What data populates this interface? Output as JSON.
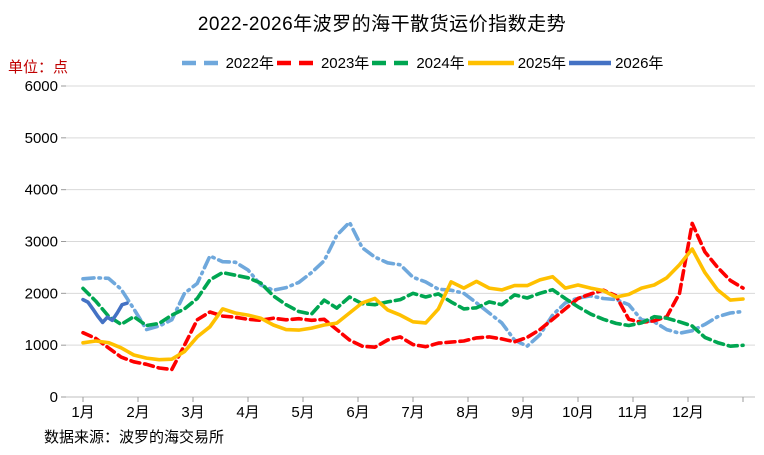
{
  "title": "2022-2026年波罗的海干散货运价指数走势",
  "unit_label": "单位：点",
  "source_note": "数据来源：波罗的海交易所",
  "chart_data": {
    "type": "line",
    "title": "2022-2026年波罗的海干散货运价指数走势",
    "ylabel": "单位：点",
    "ylim": [
      0,
      6000
    ],
    "yticks": [
      0,
      1000,
      2000,
      3000,
      4000,
      5000,
      6000
    ],
    "xticks": [
      "1月",
      "2月",
      "3月",
      "4月",
      "5月",
      "6月",
      "7月",
      "8月",
      "9月",
      "10月",
      "11月",
      "12月"
    ],
    "grid": "horizontal-light-gray",
    "legend_position": "top-center",
    "x_resolution": "weekly points spanning January to December",
    "series": [
      {
        "name": "2022年",
        "color": "#6FA8DC",
        "style": "dash-dot",
        "span_months": 12,
        "values": [
          2280,
          2300,
          2290,
          2080,
          1700,
          1300,
          1370,
          1490,
          2000,
          2190,
          2720,
          2610,
          2600,
          2450,
          2160,
          2060,
          2110,
          2210,
          2400,
          2630,
          3120,
          3370,
          2880,
          2700,
          2590,
          2550,
          2310,
          2220,
          2080,
          2060,
          2000,
          1815,
          1620,
          1430,
          1100,
          980,
          1200,
          1580,
          1815,
          1910,
          1950,
          1900,
          1880,
          1780,
          1490,
          1450,
          1300,
          1230,
          1280,
          1400,
          1550,
          1620,
          1650
        ]
      },
      {
        "name": "2023年",
        "color": "#FE0000",
        "style": "dash",
        "span_months": 12,
        "values": [
          1240,
          1130,
          950,
          770,
          680,
          630,
          560,
          530,
          1000,
          1490,
          1640,
          1560,
          1540,
          1500,
          1480,
          1520,
          1490,
          1510,
          1480,
          1500,
          1300,
          1100,
          980,
          960,
          1100,
          1160,
          1010,
          970,
          1040,
          1060,
          1080,
          1140,
          1160,
          1120,
          1065,
          1150,
          1300,
          1500,
          1700,
          1900,
          1990,
          2060,
          1950,
          1500,
          1440,
          1470,
          1550,
          2000,
          3350,
          2800,
          2500,
          2250,
          2100
        ]
      },
      {
        "name": "2024年",
        "color": "#00A651",
        "style": "dash",
        "span_months": 12,
        "values": [
          2095,
          1850,
          1560,
          1400,
          1550,
          1380,
          1420,
          1580,
          1700,
          1900,
          2260,
          2400,
          2350,
          2300,
          2200,
          1950,
          1780,
          1650,
          1600,
          1870,
          1715,
          1930,
          1800,
          1780,
          1835,
          1880,
          2000,
          1930,
          1990,
          1835,
          1700,
          1720,
          1835,
          1780,
          1970,
          1910,
          2000,
          2070,
          1900,
          1740,
          1600,
          1500,
          1420,
          1380,
          1430,
          1550,
          1520,
          1450,
          1370,
          1150,
          1050,
          980,
          997
        ]
      },
      {
        "name": "2025年",
        "color": "#FFC000",
        "style": "solid",
        "span_months": 12,
        "values": [
          1045,
          1080,
          1050,
          950,
          810,
          750,
          720,
          730,
          875,
          1160,
          1355,
          1700,
          1620,
          1580,
          1520,
          1390,
          1300,
          1290,
          1330,
          1390,
          1425,
          1620,
          1815,
          1900,
          1680,
          1580,
          1450,
          1430,
          1700,
          2220,
          2100,
          2230,
          2100,
          2066,
          2150,
          2150,
          2260,
          2320,
          2100,
          2160,
          2100,
          2050,
          1930,
          1980,
          2100,
          2160,
          2300,
          2550,
          2855,
          2400,
          2066,
          1870,
          1890
        ]
      },
      {
        "name": "2026年",
        "color": "#4472C4",
        "style": "solid",
        "span_months": 0.8,
        "values": [
          1880,
          1830,
          1700,
          1560,
          1440,
          1540,
          1480,
          1620,
          1780,
          1810
        ]
      }
    ]
  }
}
